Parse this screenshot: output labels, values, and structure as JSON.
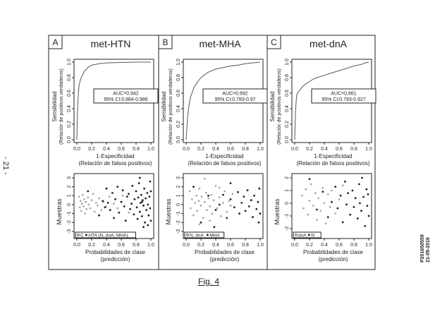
{
  "page_number": "- 21 -",
  "stamp": [
    "P201650559",
    "21-09-2016"
  ],
  "figure_label": "Fig. 4",
  "panels": [
    {
      "letter": "A",
      "title": "met-HTN"
    },
    {
      "letter": "B",
      "title": "met-MHA"
    },
    {
      "letter": "C",
      "title": "met-dnA"
    }
  ],
  "chart_data": [
    {
      "type": "line",
      "panel": "A",
      "title": "met-HTN",
      "xlabel": "1-Especificidad",
      "xlabel2": "(Relación de falsos positivos)",
      "ylabel": "Sensibilidad",
      "ylabel2": "(Relación de positivos verdaderos)",
      "xlim": [
        0,
        1
      ],
      "ylim": [
        0,
        1
      ],
      "ticks": [
        "0.0",
        "0.2",
        "0.4",
        "0.6",
        "0.8",
        "1.0"
      ],
      "annotation": [
        "AUC=0.942",
        "95% CI:0.884-0.986"
      ],
      "x": [
        0,
        0.01,
        0.02,
        0.03,
        0.05,
        0.08,
        0.1,
        0.15,
        0.2,
        0.3,
        0.4,
        0.6,
        0.8,
        1.0
      ],
      "y": [
        0,
        0.4,
        0.6,
        0.7,
        0.78,
        0.84,
        0.88,
        0.93,
        0.96,
        0.98,
        0.99,
        0.995,
        1.0,
        1.0
      ]
    },
    {
      "type": "line",
      "panel": "B",
      "title": "met-MHA",
      "xlabel": "1-Especificidad",
      "xlabel2": "(Relación de falsos positivos)",
      "ylabel": "Sensibilidad",
      "ylabel2": "(Relación de positivos verdaderos)",
      "xlim": [
        0,
        1
      ],
      "ylim": [
        0,
        1
      ],
      "ticks": [
        "0.0",
        "0.2",
        "0.4",
        "0.6",
        "0.8",
        "1.0"
      ],
      "annotation": [
        "AUC=0.892",
        "95% CI:0.783-0.97"
      ],
      "x": [
        0,
        0.02,
        0.04,
        0.06,
        0.1,
        0.15,
        0.2,
        0.3,
        0.4,
        0.5,
        0.6,
        0.7,
        0.8,
        0.9,
        1.0
      ],
      "y": [
        0,
        0.3,
        0.45,
        0.55,
        0.66,
        0.74,
        0.8,
        0.87,
        0.91,
        0.93,
        0.95,
        0.96,
        0.98,
        0.99,
        1.0
      ]
    },
    {
      "type": "line",
      "panel": "C",
      "title": "met-dnA",
      "xlabel": "1-Especificidad",
      "xlabel2": "(Relación de falsos positivos)",
      "ylabel": "Sensibilidad",
      "ylabel2": "(Relación de positivos verdaderos)",
      "xlim": [
        0,
        1
      ],
      "ylim": [
        0,
        1
      ],
      "ticks": [
        "0.0",
        "0.2",
        "0.4",
        "0.6",
        "0.8",
        "1.0"
      ],
      "annotation": [
        "AUC=0.861",
        "95% CI:0.793-0.927"
      ],
      "x": [
        0,
        0.01,
        0.02,
        0.03,
        0.05,
        0.08,
        0.1,
        0.15,
        0.2,
        0.25,
        0.3,
        0.4,
        0.5,
        0.6,
        0.7,
        0.8,
        0.9,
        0.95,
        1.0
      ],
      "y": [
        0,
        0.35,
        0.5,
        0.58,
        0.62,
        0.65,
        0.68,
        0.72,
        0.75,
        0.78,
        0.8,
        0.83,
        0.86,
        0.89,
        0.92,
        0.95,
        0.97,
        0.99,
        1.0
      ]
    },
    {
      "type": "scatter",
      "panel": "A",
      "xlabel": "Probabilidades de clase",
      "xlabel2": "(predicción)",
      "ylabel": "Muestras",
      "xlim": [
        0,
        1
      ],
      "ylim": [
        -3,
        3
      ],
      "xticks": [
        "0.0",
        "0.2",
        "0.4",
        "0.6",
        "0.8",
        "1.0"
      ],
      "yticks": [
        "-3",
        "-2",
        "-1",
        "0",
        "1",
        "2",
        "3"
      ],
      "legend": [
        "C",
        "HTA (N, dnA, MHA)"
      ],
      "series": [
        {
          "name": "C",
          "points": [
            [
              0.03,
              0.9
            ],
            [
              0.04,
              -0.3
            ],
            [
              0.05,
              0.4
            ],
            [
              0.06,
              -0.7
            ],
            [
              0.07,
              0.1
            ],
            [
              0.08,
              1.1
            ],
            [
              0.09,
              -0.2
            ],
            [
              0.1,
              0.6
            ],
            [
              0.11,
              -1.0
            ],
            [
              0.12,
              0.3
            ],
            [
              0.13,
              -0.5
            ],
            [
              0.15,
              0.8
            ],
            [
              0.16,
              0.0
            ],
            [
              0.18,
              -0.4
            ],
            [
              0.2,
              0.5
            ],
            [
              0.22,
              1.2
            ],
            [
              0.24,
              -0.8
            ],
            [
              0.26,
              0.2
            ],
            [
              0.28,
              -0.1
            ],
            [
              0.3,
              0.7
            ],
            [
              0.33,
              -0.6
            ],
            [
              0.36,
              0.3
            ],
            [
              0.4,
              -0.2
            ],
            [
              0.44,
              0.9
            ],
            [
              0.5,
              0.1
            ],
            [
              0.55,
              -0.4
            ],
            [
              0.62,
              1.0
            ],
            [
              0.7,
              -0.9
            ]
          ]
        },
        {
          "name": "HTA (N, dnA, MHA)",
          "points": [
            [
              0.15,
              1.5
            ],
            [
              0.3,
              -1.2
            ],
            [
              0.35,
              0.4
            ],
            [
              0.38,
              -0.3
            ],
            [
              0.4,
              1.8
            ],
            [
              0.42,
              0.2
            ],
            [
              0.45,
              -0.6
            ],
            [
              0.48,
              1.3
            ],
            [
              0.5,
              -1.5
            ],
            [
              0.52,
              0.6
            ],
            [
              0.55,
              2.0
            ],
            [
              0.57,
              -0.9
            ],
            [
              0.6,
              0.3
            ],
            [
              0.62,
              1.6
            ],
            [
              0.64,
              -0.2
            ],
            [
              0.66,
              -1.8
            ],
            [
              0.68,
              0.9
            ],
            [
              0.7,
              1.2
            ],
            [
              0.72,
              -0.5
            ],
            [
              0.74,
              0.1
            ],
            [
              0.75,
              2.1
            ],
            [
              0.77,
              -1.1
            ],
            [
              0.78,
              0.6
            ],
            [
              0.8,
              1.5
            ],
            [
              0.81,
              -0.3
            ],
            [
              0.82,
              -1.6
            ],
            [
              0.83,
              0.8
            ],
            [
              0.84,
              2.4
            ],
            [
              0.85,
              -0.8
            ],
            [
              0.86,
              0.2
            ],
            [
              0.87,
              1.1
            ],
            [
              0.88,
              -1.3
            ],
            [
              0.89,
              0.5
            ],
            [
              0.9,
              -0.1
            ],
            [
              0.91,
              1.8
            ],
            [
              0.92,
              -2.0
            ],
            [
              0.93,
              0.7
            ],
            [
              0.94,
              -0.6
            ],
            [
              0.95,
              1.3
            ],
            [
              0.96,
              0.0
            ],
            [
              0.97,
              -1.2
            ],
            [
              0.98,
              0.9
            ],
            [
              0.99,
              2.6
            ],
            [
              0.99,
              -0.4
            ],
            [
              1.0,
              1.5
            ],
            [
              1.0,
              -1.8
            ],
            [
              0.85,
              3.0
            ],
            [
              0.9,
              -2.5
            ],
            [
              0.96,
              -2.3
            ],
            [
              0.88,
              0.3
            ]
          ]
        }
      ]
    },
    {
      "type": "scatter",
      "panel": "B",
      "xlabel": "Probabilidades de clase",
      "xlabel2": "(predicción)",
      "ylabel": "Muestras",
      "xlim": [
        0,
        1
      ],
      "ylim": [
        -3,
        3
      ],
      "xticks": [
        "0.0",
        "0.2",
        "0.4",
        "0.6",
        "0.8",
        "1.0"
      ],
      "yticks": [
        "-3",
        "-2",
        "-1",
        "0",
        "1",
        "2",
        "3"
      ],
      "legend": [
        "N, dnA",
        "MHA"
      ],
      "series": [
        {
          "name": "N, dnA",
          "points": [
            [
              0.05,
              1.5
            ],
            [
              0.06,
              -0.4
            ],
            [
              0.08,
              0.6
            ],
            [
              0.1,
              -1.2
            ],
            [
              0.12,
              0.2
            ],
            [
              0.14,
              1.0
            ],
            [
              0.15,
              -0.7
            ],
            [
              0.17,
              0.4
            ],
            [
              0.18,
              1.8
            ],
            [
              0.2,
              -0.1
            ],
            [
              0.21,
              0.9
            ],
            [
              0.23,
              -1.5
            ],
            [
              0.25,
              0.3
            ],
            [
              0.27,
              1.3
            ],
            [
              0.28,
              -0.6
            ],
            [
              0.3,
              0.7
            ],
            [
              0.32,
              -0.2
            ],
            [
              0.34,
              1.1
            ],
            [
              0.35,
              -1.0
            ],
            [
              0.37,
              0.5
            ],
            [
              0.4,
              2.1
            ],
            [
              0.42,
              -0.4
            ],
            [
              0.45,
              0.8
            ],
            [
              0.47,
              -1.3
            ],
            [
              0.5,
              0.2
            ],
            [
              0.52,
              1.5
            ],
            [
              0.55,
              -0.8
            ],
            [
              0.58,
              0.4
            ],
            [
              0.6,
              -0.1
            ],
            [
              0.63,
              1.2
            ],
            [
              0.25,
              2.9
            ],
            [
              0.18,
              -2.2
            ],
            [
              0.32,
              -1.8
            ],
            [
              0.45,
              1.9
            ]
          ]
        },
        {
          "name": "MHA",
          "points": [
            [
              0.1,
              2.0
            ],
            [
              0.2,
              -2.0
            ],
            [
              0.3,
              1.0
            ],
            [
              0.4,
              -0.6
            ],
            [
              0.45,
              0.0
            ],
            [
              0.5,
              1.1
            ],
            [
              0.55,
              -1.5
            ],
            [
              0.6,
              0.6
            ],
            [
              0.65,
              -0.3
            ],
            [
              0.7,
              1.4
            ],
            [
              0.72,
              -1.0
            ],
            [
              0.75,
              0.2
            ],
            [
              0.78,
              0.9
            ],
            [
              0.8,
              -0.7
            ],
            [
              0.83,
              1.6
            ],
            [
              0.85,
              -0.2
            ],
            [
              0.88,
              0.5
            ],
            [
              0.9,
              -1.4
            ],
            [
              0.92,
              1.0
            ],
            [
              0.95,
              -0.5
            ],
            [
              0.97,
              0.3
            ],
            [
              0.98,
              -2.0
            ],
            [
              0.99,
              1.8
            ],
            [
              1.0,
              -1.0
            ],
            [
              0.6,
              2.4
            ],
            [
              0.38,
              -2.5
            ]
          ]
        }
      ]
    },
    {
      "type": "scatter",
      "panel": "C",
      "xlabel": "Probabilidades de clase",
      "xlabel2": "(predicción)",
      "ylabel": "Muestras",
      "xlim": [
        0,
        1
      ],
      "ylim": [
        -2,
        2
      ],
      "xticks": [
        "0.0",
        "0.2",
        "0.4",
        "0.6",
        "0.8",
        "1.0"
      ],
      "yticks": [
        "-2",
        "-1",
        "0",
        "1",
        "2"
      ],
      "legend": [
        "dnA",
        "N"
      ],
      "series": [
        {
          "name": "dnA",
          "points": [
            [
              0.1,
              0.6
            ],
            [
              0.12,
              -0.4
            ],
            [
              0.15,
              1.1
            ],
            [
              0.18,
              -0.9
            ],
            [
              0.2,
              0.2
            ],
            [
              0.22,
              1.5
            ],
            [
              0.25,
              -0.2
            ],
            [
              0.28,
              0.8
            ],
            [
              0.3,
              -1.3
            ],
            [
              0.32,
              0.4
            ],
            [
              0.35,
              -0.6
            ],
            [
              0.38,
              1.2
            ],
            [
              0.4,
              0.0
            ],
            [
              0.42,
              -1.6
            ],
            [
              0.45,
              0.7
            ],
            [
              0.48,
              -0.3
            ],
            [
              0.5,
              1.0
            ],
            [
              0.55,
              -0.8
            ],
            [
              0.6,
              0.3
            ],
            [
              0.65,
              1.4
            ]
          ]
        },
        {
          "name": "N",
          "points": [
            [
              0.2,
              1.9
            ],
            [
              0.3,
              -0.5
            ],
            [
              0.38,
              0.9
            ],
            [
              0.45,
              -1.1
            ],
            [
              0.5,
              0.1
            ],
            [
              0.55,
              1.3
            ],
            [
              0.58,
              -0.4
            ],
            [
              0.62,
              0.6
            ],
            [
              0.65,
              -1.5
            ],
            [
              0.68,
              1.7
            ],
            [
              0.7,
              -0.1
            ],
            [
              0.72,
              0.8
            ],
            [
              0.75,
              -0.9
            ],
            [
              0.78,
              1.0
            ],
            [
              0.8,
              -0.3
            ],
            [
              0.82,
              0.4
            ],
            [
              0.85,
              -1.2
            ],
            [
              0.87,
              1.5
            ],
            [
              0.88,
              0.0
            ],
            [
              0.9,
              -0.6
            ],
            [
              0.91,
              2.0
            ],
            [
              0.93,
              0.5
            ],
            [
              0.95,
              -1.8
            ],
            [
              0.97,
              1.1
            ],
            [
              0.98,
              -0.2
            ],
            [
              0.99,
              0.7
            ],
            [
              1.0,
              -1.0
            ]
          ]
        }
      ]
    }
  ]
}
